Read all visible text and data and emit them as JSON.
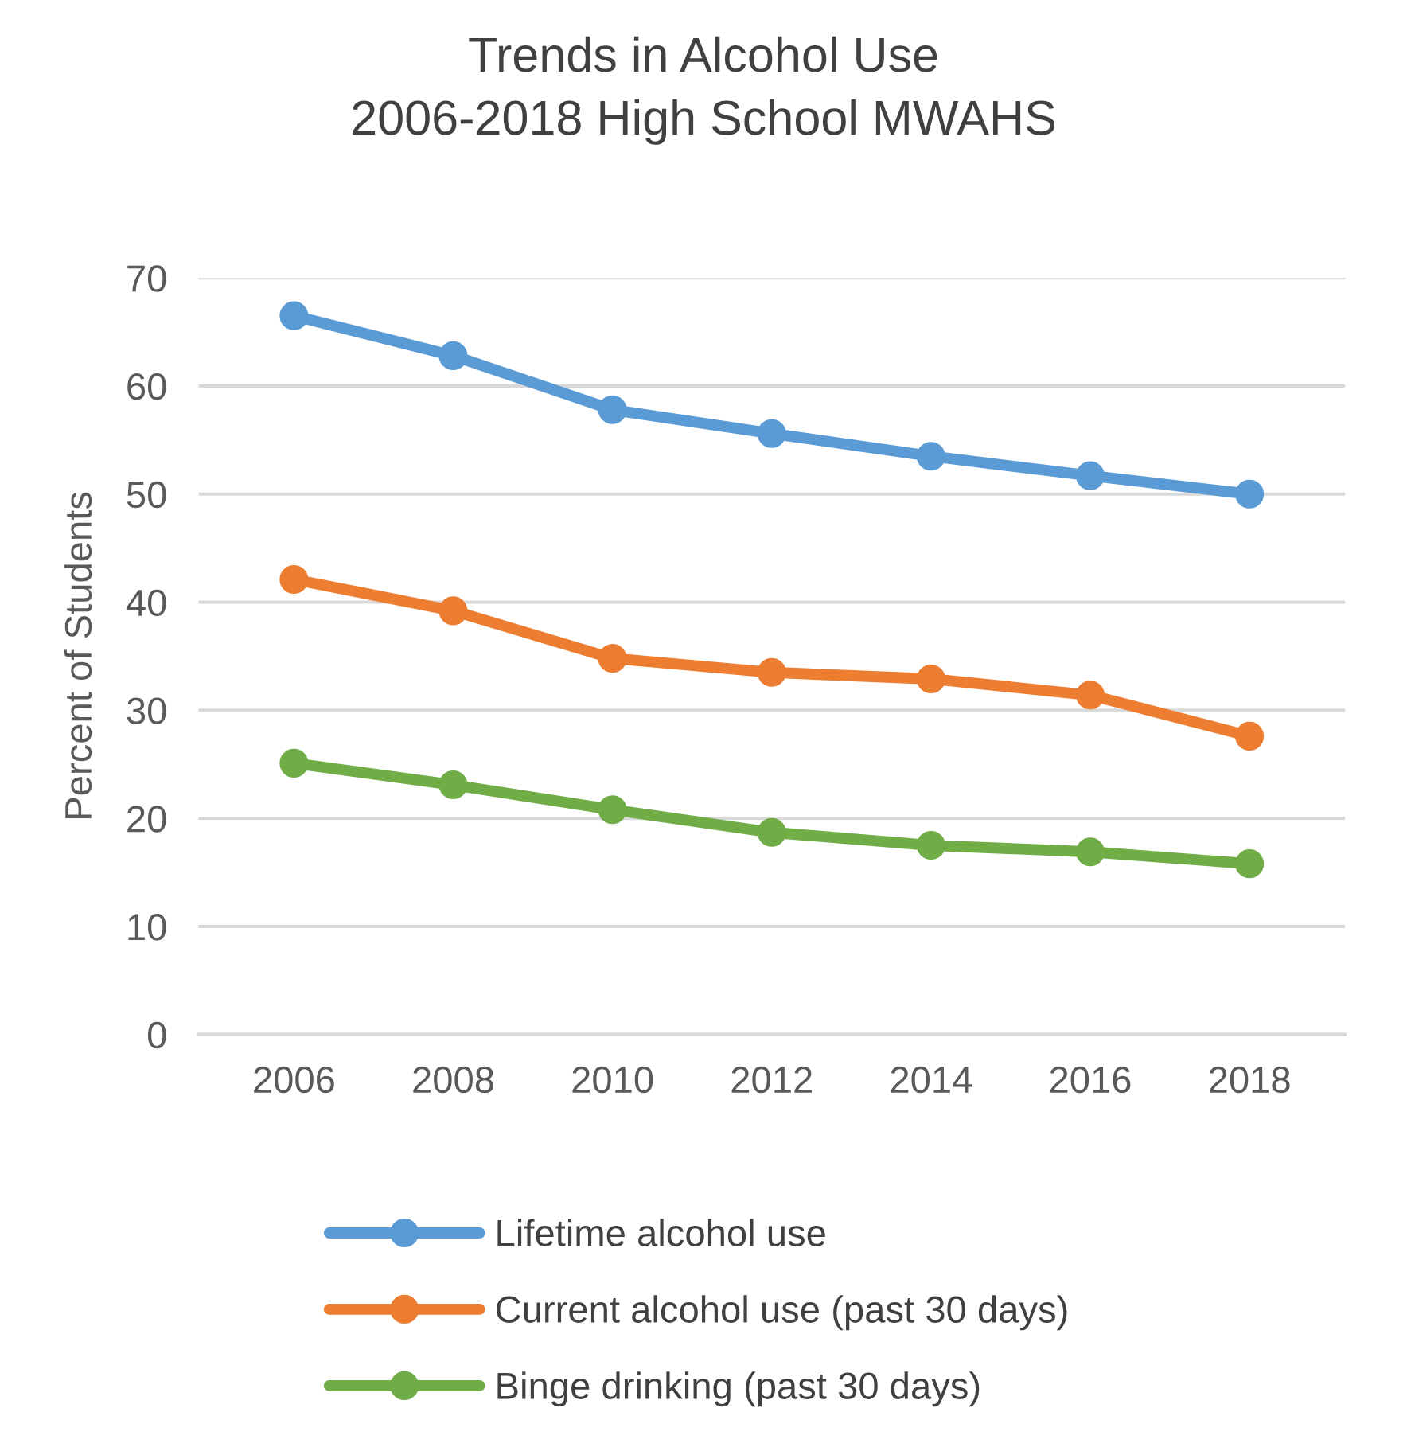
{
  "chart_data": {
    "type": "line",
    "title": "Trends in Alcohol Use\n2006-2018 High School MWAHS",
    "ylabel": "Percent of Students",
    "categories": [
      "2006",
      "2008",
      "2010",
      "2012",
      "2014",
      "2016",
      "2018"
    ],
    "series": [
      {
        "name": "Lifetime alcohol use",
        "color": "#5b9bd5",
        "values": [
          66.5,
          62.8,
          57.8,
          55.6,
          53.5,
          51.7,
          50.0
        ]
      },
      {
        "name": "Current alcohol use (past 30 days)",
        "color": "#ed7d31",
        "values": [
          42.1,
          39.2,
          34.8,
          33.5,
          32.9,
          31.4,
          27.6
        ]
      },
      {
        "name": "Binge drinking (past 30 days)",
        "color": "#70ad47",
        "values": [
          25.1,
          23.1,
          20.8,
          18.7,
          17.5,
          16.9,
          15.8
        ]
      }
    ],
    "ylim": [
      0,
      70
    ],
    "yticks": [
      0,
      10,
      20,
      30,
      40,
      50,
      60,
      70
    ],
    "grid": "y",
    "legend": "bottom",
    "marker": "circle",
    "line_style": "solid"
  }
}
